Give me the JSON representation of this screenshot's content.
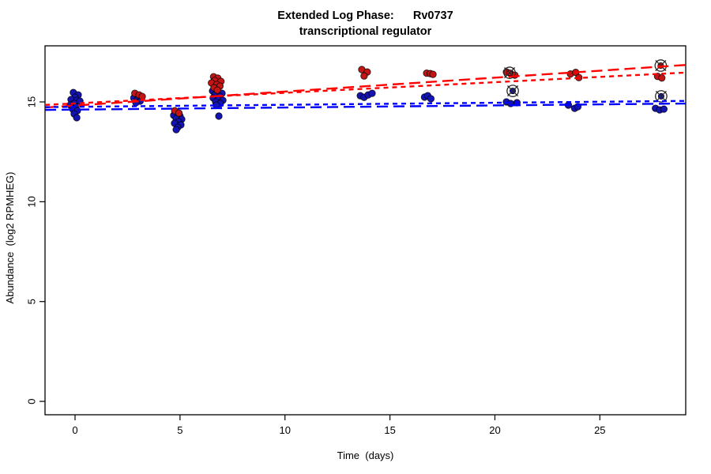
{
  "title": {
    "line1": "Extended Log Phase:      Rv0737",
    "line2": "transcriptional regulator"
  },
  "colors": {
    "red_point": "#c41414",
    "blue_point": "#1414b4",
    "red_line": "#ff0000",
    "blue_line": "#0000ff",
    "outlier_stroke": "#2a2a2a",
    "axis": "#000000"
  },
  "chart_data": {
    "type": "scatter",
    "title": "Extended Log Phase: Rv0737 transcriptional regulator",
    "xlabel": "Time  (days)",
    "ylabel": "Abundance  (log2 RPMHEG)",
    "xlim": [
      -1.43,
      29.09
    ],
    "ylim": [
      -0.67,
      17.81
    ],
    "x_ticks": [
      0,
      5,
      10,
      15,
      20,
      25
    ],
    "y_ticks": [
      0,
      5,
      10,
      15
    ],
    "grid": false,
    "legend": "none",
    "series": [
      {
        "name": "blue-points",
        "color_key": "blue_point",
        "points": [
          [
            -0.08,
            15.47
          ],
          [
            0.15,
            15.35
          ],
          [
            0.0,
            15.23
          ],
          [
            -0.19,
            15.12
          ],
          [
            0.08,
            15.08
          ],
          [
            0.23,
            15.04
          ],
          [
            -0.04,
            14.92
          ],
          [
            -0.23,
            14.84
          ],
          [
            0.04,
            14.76
          ],
          [
            -0.11,
            14.64
          ],
          [
            0.11,
            14.56
          ],
          [
            -0.04,
            14.4
          ],
          [
            0.08,
            14.21
          ],
          [
            2.8,
            15.2
          ],
          [
            2.97,
            15.12
          ],
          [
            3.1,
            15.04
          ],
          [
            2.9,
            14.96
          ],
          [
            4.85,
            14.44
          ],
          [
            4.7,
            14.33
          ],
          [
            5.0,
            14.29
          ],
          [
            4.82,
            14.17
          ],
          [
            5.08,
            14.13
          ],
          [
            4.93,
            14.01
          ],
          [
            4.74,
            13.93
          ],
          [
            5.04,
            13.85
          ],
          [
            4.89,
            13.73
          ],
          [
            4.82,
            13.61
          ],
          [
            6.55,
            15.55
          ],
          [
            6.77,
            15.47
          ],
          [
            7.0,
            15.43
          ],
          [
            6.66,
            15.35
          ],
          [
            6.89,
            15.27
          ],
          [
            6.58,
            15.2
          ],
          [
            6.81,
            15.12
          ],
          [
            7.04,
            15.08
          ],
          [
            6.7,
            15.0
          ],
          [
            6.92,
            14.92
          ],
          [
            6.73,
            14.84
          ],
          [
            6.85,
            14.29
          ],
          [
            13.59,
            15.31
          ],
          [
            13.77,
            15.23
          ],
          [
            13.96,
            15.35
          ],
          [
            14.15,
            15.43
          ],
          [
            16.65,
            15.24
          ],
          [
            16.8,
            15.31
          ],
          [
            16.95,
            15.16
          ],
          [
            20.55,
            15.0
          ],
          [
            20.75,
            14.92
          ],
          [
            21.05,
            14.96
          ],
          [
            23.5,
            14.84
          ],
          [
            23.8,
            14.68
          ],
          [
            23.95,
            14.76
          ],
          [
            27.65,
            14.68
          ],
          [
            27.85,
            14.6
          ],
          [
            28.05,
            14.64
          ]
        ]
      },
      {
        "name": "red-points",
        "color_key": "red_point",
        "points": [
          [
            2.85,
            15.43
          ],
          [
            3.05,
            15.35
          ],
          [
            3.2,
            15.27
          ],
          [
            4.75,
            14.56
          ],
          [
            4.95,
            14.44
          ],
          [
            6.6,
            16.26
          ],
          [
            6.8,
            16.19
          ],
          [
            6.65,
            16.07
          ],
          [
            6.95,
            16.03
          ],
          [
            6.5,
            15.95
          ],
          [
            6.75,
            15.87
          ],
          [
            6.9,
            15.79
          ],
          [
            6.62,
            15.71
          ],
          [
            6.78,
            15.59
          ],
          [
            13.66,
            16.62
          ],
          [
            13.92,
            16.5
          ],
          [
            13.77,
            16.3
          ],
          [
            16.75,
            16.44
          ],
          [
            16.92,
            16.42
          ],
          [
            17.05,
            16.38
          ],
          [
            20.55,
            16.5
          ],
          [
            20.75,
            16.42
          ],
          [
            20.95,
            16.34
          ],
          [
            23.6,
            16.4
          ],
          [
            23.85,
            16.48
          ],
          [
            24.0,
            16.22
          ],
          [
            27.75,
            16.28
          ],
          [
            27.95,
            16.2
          ]
        ]
      }
    ],
    "outlier_markers": [
      {
        "day": 20.7,
        "value": 16.46,
        "color_key": "red_point"
      },
      {
        "day": 20.85,
        "value": 15.55,
        "color_key": "blue_point"
      },
      {
        "day": 27.9,
        "value": 16.82,
        "color_key": "red_point"
      },
      {
        "day": 27.92,
        "value": 15.28,
        "color_key": "blue_point"
      }
    ],
    "trend_lines": [
      {
        "name": "red-short-dash",
        "color_key": "red_line",
        "dash": "short",
        "x0": -1.43,
        "y0": 14.85,
        "x1": 29.09,
        "y1": 16.47
      },
      {
        "name": "red-long-dash",
        "color_key": "red_line",
        "dash": "long",
        "x0": -1.43,
        "y0": 14.72,
        "x1": 29.09,
        "y1": 16.85
      },
      {
        "name": "blue-short-dash",
        "color_key": "blue_line",
        "dash": "short",
        "x0": -1.43,
        "y0": 14.74,
        "x1": 29.09,
        "y1": 15.05
      },
      {
        "name": "blue-long-dash",
        "color_key": "blue_line",
        "dash": "long",
        "x0": -1.43,
        "y0": 14.6,
        "x1": 29.09,
        "y1": 14.92
      }
    ]
  }
}
